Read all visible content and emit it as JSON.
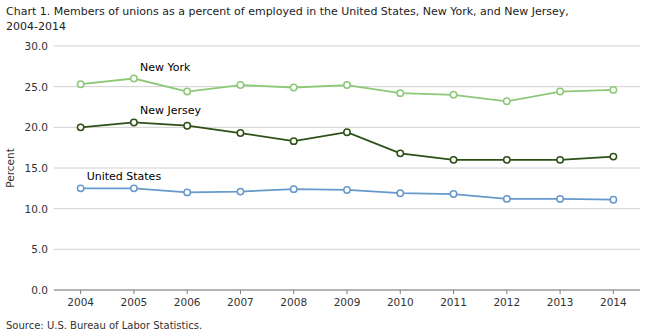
{
  "chart_data": {
    "type": "line",
    "title": "Chart 1. Members of unions as a percent of employed in the United States, New York, and New Jersey,",
    "subtitle": "2004-2014",
    "y_label": "Percent",
    "source": "Source: U.S. Bureau of Labor Statistics.",
    "x": [
      2004,
      2005,
      2006,
      2007,
      2008,
      2009,
      2010,
      2011,
      2012,
      2013,
      2014
    ],
    "series": [
      {
        "name": "New York",
        "color": "#8DC878",
        "marker": "circle",
        "values": [
          25.3,
          26.0,
          24.4,
          25.2,
          24.9,
          25.2,
          24.2,
          24.0,
          23.2,
          24.4,
          24.6
        ]
      },
      {
        "name": "New Jersey",
        "color": "#2D5016",
        "marker": "circle",
        "values": [
          20.0,
          20.6,
          20.2,
          19.3,
          18.3,
          19.4,
          16.8,
          16.0,
          16.0,
          16.0,
          16.4
        ]
      },
      {
        "name": "United States",
        "color": "#6699CC",
        "marker": "circle",
        "values": [
          12.5,
          12.5,
          12.0,
          12.1,
          12.4,
          12.3,
          11.9,
          11.8,
          11.2,
          11.2,
          11.1
        ]
      }
    ],
    "xlim": [
      2003.5,
      2014.5
    ],
    "xticks": [
      2004,
      2005,
      2006,
      2007,
      2008,
      2009,
      2010,
      2011,
      2012,
      2013,
      2014
    ],
    "ylim": [
      0.0,
      30.0
    ],
    "yticks": [
      {
        "value": 0,
        "label": "0.0"
      },
      {
        "value": 5,
        "label": "5.0"
      },
      {
        "value": 10,
        "label": "10.0"
      },
      {
        "value": 15,
        "label": "15.0"
      },
      {
        "value": 20,
        "label": "20.0"
      },
      {
        "value": 25,
        "label": "25.0"
      },
      {
        "value": 30,
        "label": "30.0"
      }
    ],
    "grid": true
  }
}
